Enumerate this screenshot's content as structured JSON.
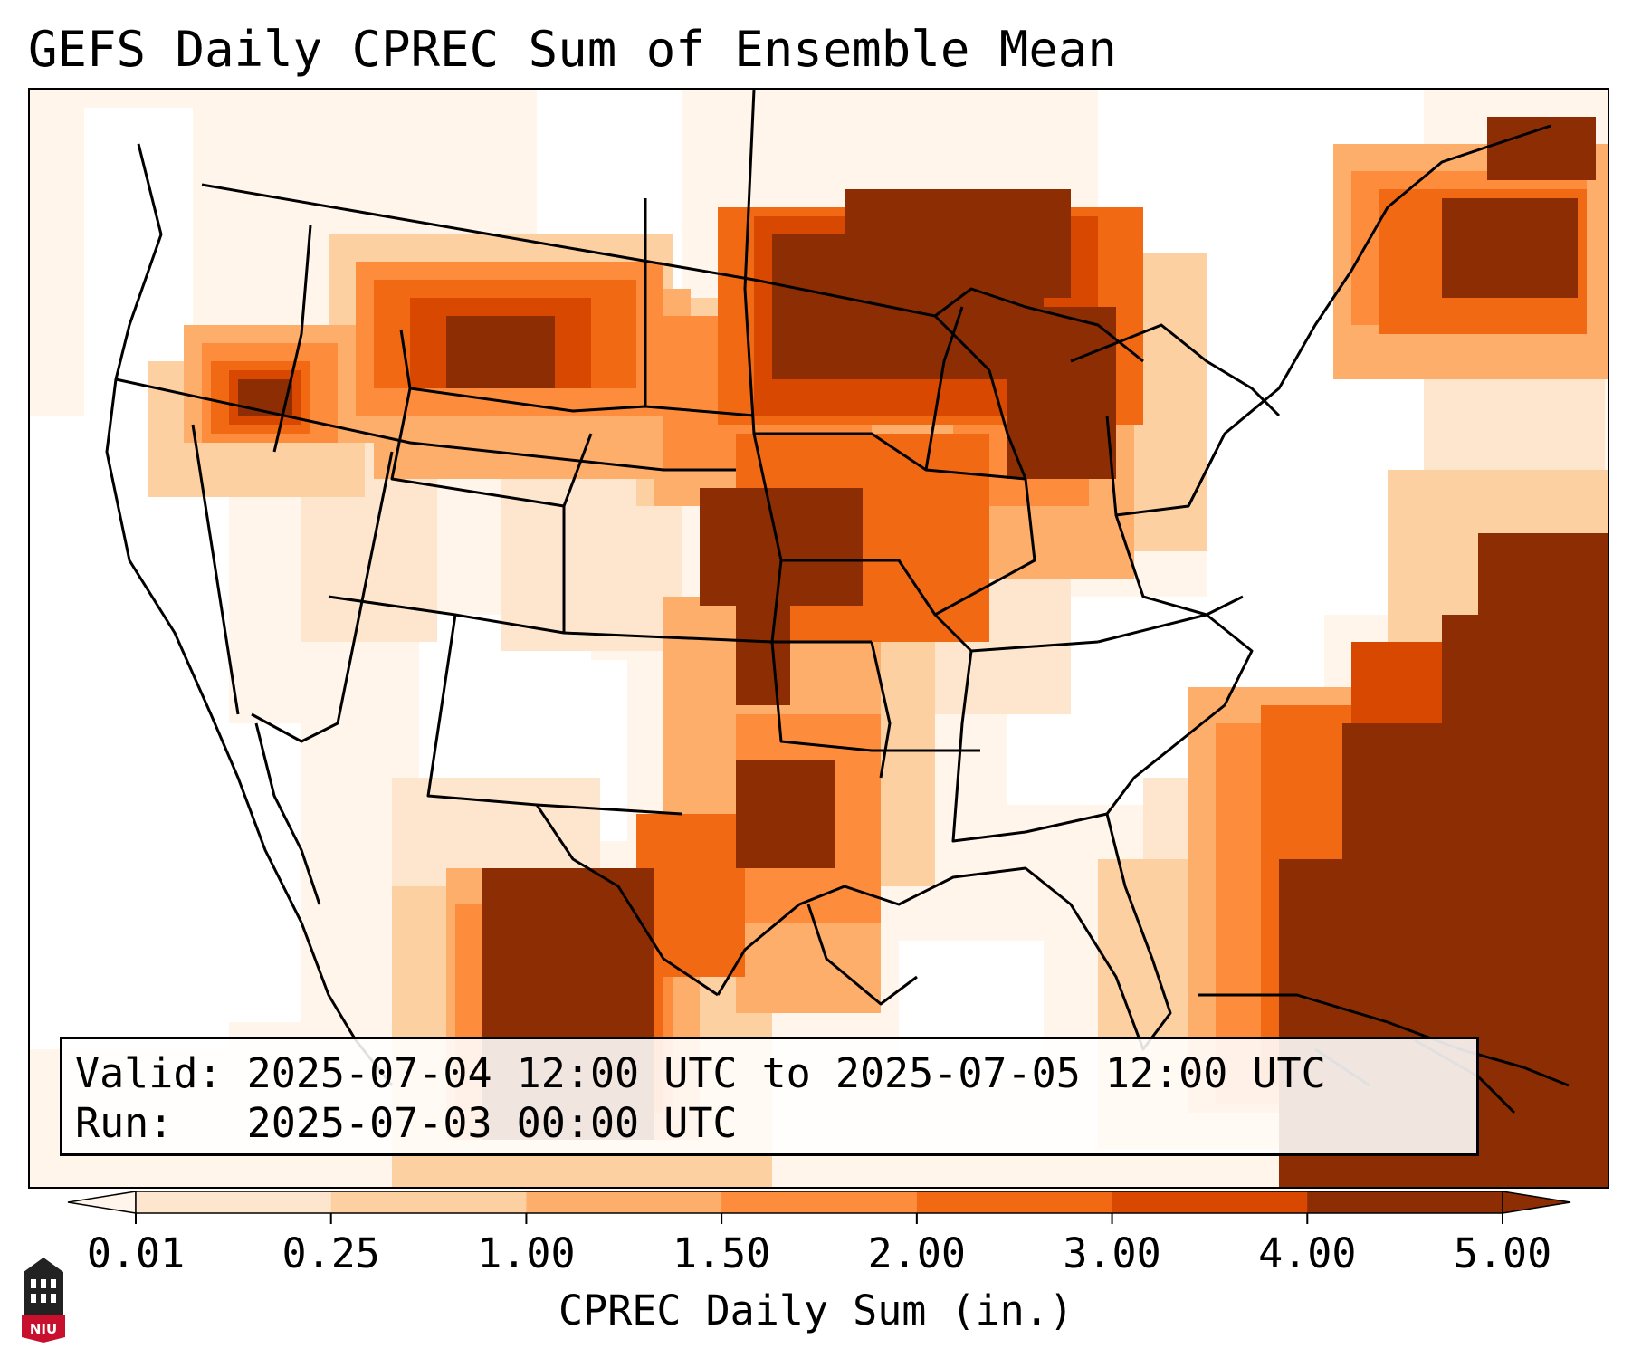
{
  "title": "GEFS Daily CPREC Sum of Ensemble Mean",
  "info": {
    "valid_label": "Valid:",
    "valid_value": "2025-07-04 12:00 UTC to 2025-07-05 12:00 UTC",
    "run_label": "Run:",
    "run_value": "2025-07-03 00:00 UTC"
  },
  "colorbar": {
    "label": "CPREC Daily Sum (in.)",
    "ticks": [
      "0.01",
      "0.25",
      "1.00",
      "1.50",
      "2.00",
      "3.00",
      "4.00",
      "5.00"
    ],
    "colors": [
      "#fff5eb",
      "#fee6ce",
      "#fdd0a2",
      "#fdae6b",
      "#fd8d3c",
      "#f16913",
      "#d94801",
      "#8c2d04"
    ],
    "extend": "both"
  },
  "logo": {
    "text": "NIU",
    "icon": "university-tower-icon",
    "color": "#c8102e"
  }
}
